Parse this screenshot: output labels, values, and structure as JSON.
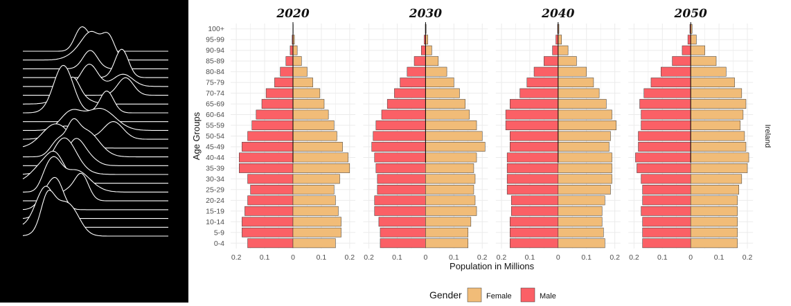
{
  "chart_data": {
    "type": "bar",
    "subtype": "population-pyramid",
    "facets": [
      "2020",
      "2030",
      "2040",
      "2050"
    ],
    "strip_label": "Ireland",
    "categories": [
      "0-4",
      "5-9",
      "10-14",
      "15-19",
      "20-24",
      "25-29",
      "30-34",
      "35-39",
      "40-44",
      "45-49",
      "50-54",
      "55-59",
      "60-64",
      "65-69",
      "70-74",
      "75-79",
      "80-84",
      "85-89",
      "90-94",
      "95-99",
      "100+"
    ],
    "x_ticks": [
      "0.2",
      "0.1",
      "0",
      "0.1",
      "0.2"
    ],
    "xlim": [
      -0.22,
      0.22
    ],
    "xlabel": "Population in Millions",
    "ylabel": "Age Groups",
    "legend": {
      "title": "Gender",
      "position": "bottom",
      "entries": [
        "Female",
        "Male"
      ]
    },
    "colors": {
      "Female": "#F1BC78",
      "Male": "#FB6066",
      "bar_border": "#333333",
      "grid": "#ebebeb",
      "center_line": "#000000"
    },
    "series": [
      {
        "year": "2020",
        "Male": [
          0.16,
          0.18,
          0.18,
          0.17,
          0.16,
          0.15,
          0.16,
          0.19,
          0.19,
          0.18,
          0.16,
          0.145,
          0.13,
          0.11,
          0.095,
          0.065,
          0.045,
          0.025,
          0.01,
          0.003,
          0.0005
        ],
        "Female": [
          0.15,
          0.17,
          0.17,
          0.16,
          0.15,
          0.145,
          0.165,
          0.2,
          0.195,
          0.175,
          0.155,
          0.145,
          0.125,
          0.11,
          0.095,
          0.07,
          0.05,
          0.03,
          0.015,
          0.005,
          0.001
        ]
      },
      {
        "year": "2030",
        "Male": [
          0.16,
          0.16,
          0.165,
          0.18,
          0.18,
          0.17,
          0.17,
          0.175,
          0.18,
          0.19,
          0.185,
          0.175,
          0.155,
          0.135,
          0.11,
          0.09,
          0.065,
          0.04,
          0.015,
          0.005,
          0.001
        ],
        "Female": [
          0.15,
          0.15,
          0.16,
          0.18,
          0.175,
          0.17,
          0.175,
          0.17,
          0.18,
          0.21,
          0.2,
          0.18,
          0.155,
          0.14,
          0.12,
          0.1,
          0.075,
          0.045,
          0.022,
          0.008,
          0.002
        ]
      },
      {
        "year": "2040",
        "Male": [
          0.17,
          0.17,
          0.17,
          0.165,
          0.165,
          0.18,
          0.18,
          0.18,
          0.18,
          0.17,
          0.17,
          0.185,
          0.185,
          0.17,
          0.135,
          0.11,
          0.085,
          0.05,
          0.02,
          0.008,
          0.002
        ],
        "Female": [
          0.165,
          0.16,
          0.155,
          0.155,
          0.165,
          0.185,
          0.19,
          0.19,
          0.19,
          0.18,
          0.185,
          0.205,
          0.19,
          0.17,
          0.145,
          0.125,
          0.1,
          0.065,
          0.035,
          0.012,
          0.003
        ]
      },
      {
        "year": "2050",
        "Male": [
          0.17,
          0.17,
          0.17,
          0.175,
          0.17,
          0.17,
          0.175,
          0.19,
          0.195,
          0.185,
          0.185,
          0.175,
          0.175,
          0.18,
          0.165,
          0.14,
          0.105,
          0.065,
          0.03,
          0.01,
          0.003
        ],
        "Female": [
          0.165,
          0.165,
          0.165,
          0.165,
          0.165,
          0.17,
          0.18,
          0.2,
          0.205,
          0.195,
          0.19,
          0.175,
          0.185,
          0.195,
          0.18,
          0.155,
          0.125,
          0.09,
          0.05,
          0.02,
          0.005
        ]
      }
    ]
  },
  "ridgeline": {
    "line_color": "#ffffff",
    "background": "#000000",
    "count": 22
  }
}
